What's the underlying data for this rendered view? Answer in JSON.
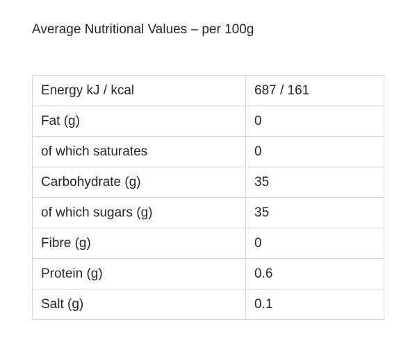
{
  "heading": "Average Nutritional Values – per 100g",
  "rows": [
    {
      "label": "Energy kJ / kcal",
      "value": "687 / 161"
    },
    {
      "label": "Fat (g)",
      "value": "0"
    },
    {
      "label": "of which saturates",
      "value": "0"
    },
    {
      "label": "Carbohydrate (g)",
      "value": "35"
    },
    {
      "label": "of which sugars (g)",
      "value": "35"
    },
    {
      "label": "Fibre (g)",
      "value": "0"
    },
    {
      "label": "Protein (g)",
      "value": "0.6"
    },
    {
      "label": "Salt (g)",
      "value": "0.1"
    }
  ],
  "colors": {
    "text": "#262626",
    "border": "#d6d6d6",
    "background": "#ffffff"
  }
}
